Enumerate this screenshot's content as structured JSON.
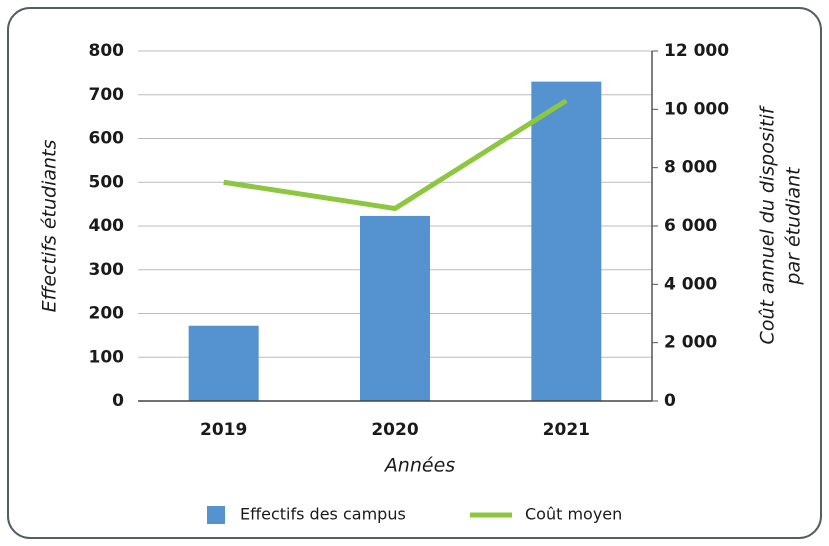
{
  "chart_data": {
    "type": "bar",
    "categories": [
      "2019",
      "2020",
      "2021"
    ],
    "series": [
      {
        "name": "Effectifs des campus",
        "type": "bar",
        "color": "#5592d0",
        "values": [
          172,
          423,
          730
        ]
      },
      {
        "name": "Coût moyen",
        "type": "line",
        "color": "#8dc63f",
        "axis": "y2",
        "values": [
          7500,
          6600,
          10300
        ]
      }
    ],
    "xlabel": "Années",
    "ylabel": "Effectifs étudiants",
    "y2label": [
      "Coût annuel du dispositif",
      "par étudiant"
    ],
    "ylim": [
      0,
      800
    ],
    "yticks": [
      0,
      100,
      200,
      300,
      400,
      500,
      600,
      700,
      800
    ],
    "y2lim": [
      0,
      12000
    ],
    "y2ticks": [
      0,
      {
        "value": 2000,
        "label": "2 000"
      },
      {
        "value": 4000,
        "label": "4 000"
      },
      {
        "value": 6000,
        "label": "6 000"
      },
      {
        "value": 8000,
        "label": "8 000"
      },
      {
        "value": 10000,
        "label": "10 000"
      },
      {
        "value": 12000,
        "label": "12 000"
      }
    ],
    "grid": true,
    "legend": "bottom"
  }
}
